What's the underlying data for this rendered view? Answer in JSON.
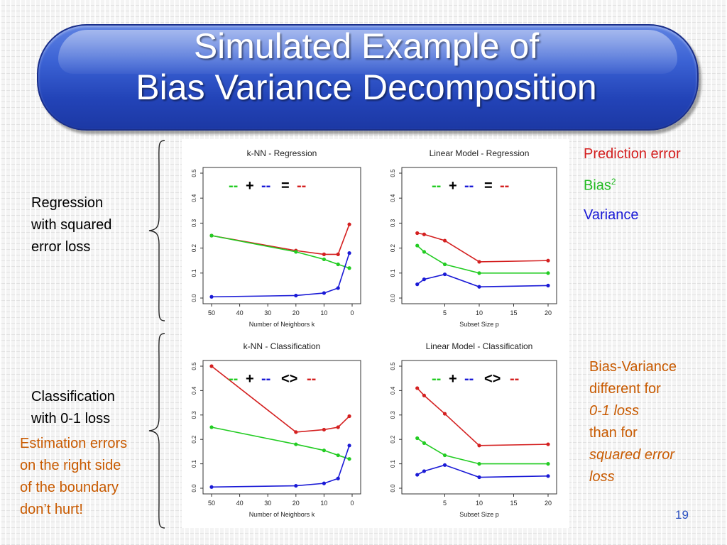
{
  "slide": {
    "title_line1": "Simulated Example of",
    "title_line2": "Bias Variance Decomposition",
    "page_number": "19",
    "regression_label": [
      "Regression",
      "with squared",
      "error loss"
    ],
    "classification_label": [
      "Classification",
      "with 0-1 loss"
    ],
    "estimation_note": [
      "Estimation errors",
      "on the right side",
      "of the boundary",
      "don’t hurt!"
    ],
    "legend": {
      "prediction_error": "Prediction error",
      "bias": "Bias",
      "bias_sup": "2",
      "variance": "Variance"
    },
    "note": {
      "line1": "Bias-Variance",
      "line2": "different for",
      "line3": "0-1 loss",
      "line4": "than for",
      "line5": "squared error",
      "line6": "loss"
    },
    "colors": {
      "prediction_error": "#d42020",
      "bias": "#22cc22",
      "variance": "#1a1ad6",
      "title_blue": "#2b4fc8",
      "orange_text": "#c85a00"
    }
  },
  "chart_data": [
    {
      "type": "line",
      "title": "k-NN - Regression",
      "xlabel": "Number of Neighbors k",
      "ylabel": "",
      "xlim": [
        50,
        0
      ],
      "ylim": [
        0,
        0.5
      ],
      "xticks": [
        50,
        40,
        30,
        20,
        10,
        0
      ],
      "yticks": [
        0.0,
        0.1,
        0.2,
        0.3,
        0.4,
        0.5
      ],
      "annotation": {
        "op": "+",
        "eq": "="
      },
      "series": [
        {
          "color": "#d42020",
          "x": [
            50,
            20,
            10,
            5,
            1
          ],
          "y": [
            0.25,
            0.19,
            0.175,
            0.175,
            0.295
          ]
        },
        {
          "color": "#22cc22",
          "x": [
            50,
            20,
            10,
            5,
            1
          ],
          "y": [
            0.25,
            0.185,
            0.155,
            0.135,
            0.12
          ]
        },
        {
          "color": "#1a1ad6",
          "x": [
            50,
            20,
            10,
            5,
            1
          ],
          "y": [
            0.005,
            0.01,
            0.02,
            0.04,
            0.18
          ]
        }
      ]
    },
    {
      "type": "line",
      "title": "Linear Model - Regression",
      "xlabel": "Subset Size p",
      "ylabel": "",
      "xlim": [
        0,
        20
      ],
      "ylim": [
        0,
        0.5
      ],
      "xticks": [
        5,
        10,
        15,
        20
      ],
      "yticks": [
        0.0,
        0.1,
        0.2,
        0.3,
        0.4,
        0.5
      ],
      "annotation": {
        "op": "+",
        "eq": "="
      },
      "series": [
        {
          "color": "#d42020",
          "x": [
            1,
            2,
            5,
            10,
            20
          ],
          "y": [
            0.26,
            0.255,
            0.23,
            0.145,
            0.15
          ]
        },
        {
          "color": "#22cc22",
          "x": [
            1,
            2,
            5,
            10,
            20
          ],
          "y": [
            0.21,
            0.185,
            0.135,
            0.1,
            0.1
          ]
        },
        {
          "color": "#1a1ad6",
          "x": [
            1,
            2,
            5,
            10,
            20
          ],
          "y": [
            0.055,
            0.075,
            0.095,
            0.045,
            0.05
          ]
        }
      ]
    },
    {
      "type": "line",
      "title": "k-NN - Classification",
      "xlabel": "Number of Neighbors k",
      "ylabel": "",
      "xlim": [
        50,
        0
      ],
      "ylim": [
        0,
        0.5
      ],
      "xticks": [
        50,
        40,
        30,
        20,
        10,
        0
      ],
      "yticks": [
        0.0,
        0.1,
        0.2,
        0.3,
        0.4,
        0.5
      ],
      "annotation": {
        "op": "+",
        "eq": "<>"
      },
      "series": [
        {
          "color": "#d42020",
          "x": [
            50,
            20,
            10,
            5,
            1
          ],
          "y": [
            0.5,
            0.23,
            0.24,
            0.25,
            0.295
          ]
        },
        {
          "color": "#22cc22",
          "x": [
            50,
            20,
            10,
            5,
            1
          ],
          "y": [
            0.25,
            0.18,
            0.155,
            0.135,
            0.12
          ]
        },
        {
          "color": "#1a1ad6",
          "x": [
            50,
            20,
            10,
            5,
            1
          ],
          "y": [
            0.005,
            0.01,
            0.02,
            0.04,
            0.175
          ]
        }
      ]
    },
    {
      "type": "line",
      "title": "Linear Model - Classification",
      "xlabel": "Subset Size p",
      "ylabel": "",
      "xlim": [
        0,
        20
      ],
      "ylim": [
        0,
        0.5
      ],
      "xticks": [
        5,
        10,
        15,
        20
      ],
      "yticks": [
        0.0,
        0.1,
        0.2,
        0.3,
        0.4,
        0.5
      ],
      "annotation": {
        "op": "+",
        "eq": "<>"
      },
      "series": [
        {
          "color": "#d42020",
          "x": [
            1,
            2,
            5,
            10,
            20
          ],
          "y": [
            0.41,
            0.38,
            0.305,
            0.175,
            0.18
          ]
        },
        {
          "color": "#22cc22",
          "x": [
            1,
            2,
            5,
            10,
            20
          ],
          "y": [
            0.205,
            0.185,
            0.135,
            0.1,
            0.1
          ]
        },
        {
          "color": "#1a1ad6",
          "x": [
            1,
            2,
            5,
            10,
            20
          ],
          "y": [
            0.055,
            0.07,
            0.095,
            0.045,
            0.05
          ]
        }
      ]
    }
  ]
}
